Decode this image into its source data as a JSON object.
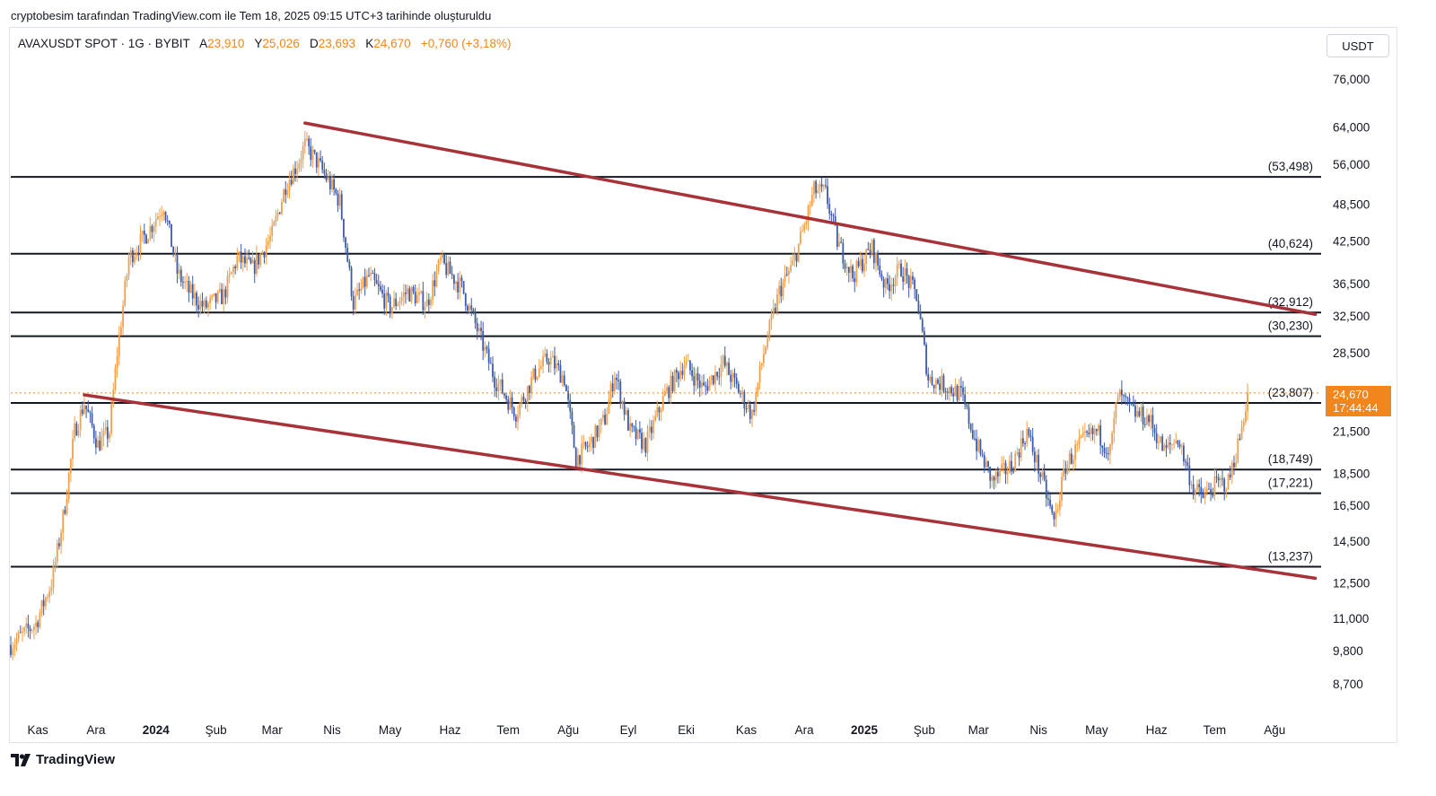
{
  "header": {
    "author_line": "cryptobesim tarafından TradingView.com ile Tem 18, 2025 09:15 UTC+3 tarihinde oluşturuldu"
  },
  "legend": {
    "symbol": "AVAXUSDT SPOT · 1G · BYBIT",
    "open_label": "A",
    "open_value": "23,910",
    "high_label": "Y",
    "high_value": "25,026",
    "low_label": "D",
    "low_value": "23,693",
    "close_label": "K",
    "close_value": "24,670",
    "change": "+0,760 (+3,18%)"
  },
  "currency": "USDT",
  "price_badge": {
    "price": "24,670",
    "countdown": "17:44:44"
  },
  "branding": {
    "logo_text": "TradingView"
  },
  "colors": {
    "up": "#f0a04b",
    "down": "#3d5ba9",
    "channel": "#a83239",
    "level": "#131722",
    "badge": "#f0861c",
    "current_line": "#f0861c"
  },
  "chart_data": {
    "type": "candlestick",
    "title": "AVAXUSDT SPOT · 1G · BYBIT",
    "scale": "log",
    "ylim": [
      7800,
      90000
    ],
    "y_ticks": [
      {
        "label": "76,000",
        "value": 76000
      },
      {
        "label": "64,000",
        "value": 64000
      },
      {
        "label": "56,000",
        "value": 56000
      },
      {
        "label": "48,500",
        "value": 48500
      },
      {
        "label": "42,500",
        "value": 42500
      },
      {
        "label": "36,500",
        "value": 36500
      },
      {
        "label": "32,500",
        "value": 32500
      },
      {
        "label": "28,500",
        "value": 28500
      },
      {
        "label": "21,500",
        "value": 21500
      },
      {
        "label": "18,500",
        "value": 18500
      },
      {
        "label": "16,500",
        "value": 16500
      },
      {
        "label": "14,500",
        "value": 14500
      },
      {
        "label": "12,500",
        "value": 12500
      },
      {
        "label": "11,000",
        "value": 11000
      },
      {
        "label": "9,800",
        "value": 9800
      },
      {
        "label": "8,700",
        "value": 8700
      }
    ],
    "x_ticks": [
      {
        "label": "Kas",
        "date": "2023-11-01",
        "bold": false
      },
      {
        "label": "Ara",
        "date": "2023-12-01",
        "bold": false
      },
      {
        "label": "2024",
        "date": "2024-01-01",
        "bold": true
      },
      {
        "label": "Şub",
        "date": "2024-02-01",
        "bold": false
      },
      {
        "label": "Mar",
        "date": "2024-03-01",
        "bold": false
      },
      {
        "label": "Nis",
        "date": "2024-04-01",
        "bold": false
      },
      {
        "label": "May",
        "date": "2024-05-01",
        "bold": false
      },
      {
        "label": "Haz",
        "date": "2024-06-01",
        "bold": false
      },
      {
        "label": "Tem",
        "date": "2024-07-01",
        "bold": false
      },
      {
        "label": "Ağu",
        "date": "2024-08-01",
        "bold": false
      },
      {
        "label": "Eyl",
        "date": "2024-09-01",
        "bold": false
      },
      {
        "label": "Eki",
        "date": "2024-10-01",
        "bold": false
      },
      {
        "label": "Kas",
        "date": "2024-11-01",
        "bold": false
      },
      {
        "label": "Ara",
        "date": "2024-12-01",
        "bold": false
      },
      {
        "label": "2025",
        "date": "2025-01-01",
        "bold": true
      },
      {
        "label": "Şub",
        "date": "2025-02-01",
        "bold": false
      },
      {
        "label": "Mar",
        "date": "2025-03-01",
        "bold": false
      },
      {
        "label": "Nis",
        "date": "2025-04-01",
        "bold": false
      },
      {
        "label": "May",
        "date": "2025-05-01",
        "bold": false
      },
      {
        "label": "Haz",
        "date": "2025-06-01",
        "bold": false
      },
      {
        "label": "Tem",
        "date": "2025-07-01",
        "bold": false
      },
      {
        "label": "Ağu",
        "date": "2025-08-01",
        "bold": false
      }
    ],
    "horizontal_levels": [
      {
        "label": "(53,498)",
        "value": 53498
      },
      {
        "label": "(40,624)",
        "value": 40624
      },
      {
        "label": "(32,912)",
        "value": 32912
      },
      {
        "label": "(30,230)",
        "value": 30230
      },
      {
        "label": "(23,807)",
        "value": 23807
      },
      {
        "label": "(18,749)",
        "value": 18749
      },
      {
        "label": "(17,221)",
        "value": 17221
      },
      {
        "label": "(13,237)",
        "value": 13237
      }
    ],
    "channel_lines": [
      {
        "name": "upper",
        "points": [
          {
            "date": "2024-03-18",
            "value": 64900
          },
          {
            "date": "2025-08-22",
            "value": 32700
          }
        ]
      },
      {
        "name": "lower",
        "points": [
          {
            "date": "2023-11-25",
            "value": 24500
          },
          {
            "date": "2025-08-22",
            "value": 12700
          }
        ]
      }
    ],
    "current_price": 24.67,
    "price_path": [
      {
        "date": "2023-10-18",
        "value": 10.0
      },
      {
        "date": "2023-10-31",
        "value": 10.8
      },
      {
        "date": "2023-11-08",
        "value": 12.5
      },
      {
        "date": "2023-11-12",
        "value": 14.5
      },
      {
        "date": "2023-11-15",
        "value": 16.5
      },
      {
        "date": "2023-11-20",
        "value": 21.5
      },
      {
        "date": "2023-11-25",
        "value": 23.8
      },
      {
        "date": "2023-12-02",
        "value": 20.5
      },
      {
        "date": "2023-12-08",
        "value": 21.5
      },
      {
        "date": "2023-12-12",
        "value": 28.5
      },
      {
        "date": "2023-12-18",
        "value": 40.0
      },
      {
        "date": "2023-12-28",
        "value": 44.0
      },
      {
        "date": "2024-01-05",
        "value": 48.5
      },
      {
        "date": "2024-01-12",
        "value": 38.0
      },
      {
        "date": "2024-01-18",
        "value": 35.5
      },
      {
        "date": "2024-01-26",
        "value": 33.5
      },
      {
        "date": "2024-02-05",
        "value": 35.0
      },
      {
        "date": "2024-02-12",
        "value": 40.0
      },
      {
        "date": "2024-02-20",
        "value": 38.5
      },
      {
        "date": "2024-03-01",
        "value": 43.5
      },
      {
        "date": "2024-03-08",
        "value": 52.0
      },
      {
        "date": "2024-03-14",
        "value": 56.0
      },
      {
        "date": "2024-03-18",
        "value": 60.0
      },
      {
        "date": "2024-03-25",
        "value": 56.0
      },
      {
        "date": "2024-04-05",
        "value": 49.0
      },
      {
        "date": "2024-04-12",
        "value": 34.0
      },
      {
        "date": "2024-04-20",
        "value": 37.5
      },
      {
        "date": "2024-05-01",
        "value": 33.5
      },
      {
        "date": "2024-05-10",
        "value": 35.5
      },
      {
        "date": "2024-05-20",
        "value": 34.0
      },
      {
        "date": "2024-05-27",
        "value": 39.5
      },
      {
        "date": "2024-06-07",
        "value": 36.0
      },
      {
        "date": "2024-06-15",
        "value": 31.0
      },
      {
        "date": "2024-06-24",
        "value": 26.0
      },
      {
        "date": "2024-07-05",
        "value": 23.0
      },
      {
        "date": "2024-07-15",
        "value": 26.5
      },
      {
        "date": "2024-07-22",
        "value": 28.0
      },
      {
        "date": "2024-07-30",
        "value": 26.0
      },
      {
        "date": "2024-08-05",
        "value": 19.5
      },
      {
        "date": "2024-08-12",
        "value": 20.5
      },
      {
        "date": "2024-08-20",
        "value": 22.5
      },
      {
        "date": "2024-08-25",
        "value": 26.5
      },
      {
        "date": "2024-09-02",
        "value": 21.5
      },
      {
        "date": "2024-09-10",
        "value": 20.5
      },
      {
        "date": "2024-09-20",
        "value": 24.5
      },
      {
        "date": "2024-09-30",
        "value": 27.5
      },
      {
        "date": "2024-10-10",
        "value": 25.0
      },
      {
        "date": "2024-10-20",
        "value": 27.5
      },
      {
        "date": "2024-11-04",
        "value": 22.8
      },
      {
        "date": "2024-11-10",
        "value": 28.5
      },
      {
        "date": "2024-11-18",
        "value": 35.5
      },
      {
        "date": "2024-11-25",
        "value": 39.0
      },
      {
        "date": "2024-12-02",
        "value": 46.0
      },
      {
        "date": "2024-12-06",
        "value": 51.0
      },
      {
        "date": "2024-12-12",
        "value": 50.5
      },
      {
        "date": "2024-12-18",
        "value": 42.5
      },
      {
        "date": "2024-12-26",
        "value": 37.5
      },
      {
        "date": "2025-01-05",
        "value": 41.5
      },
      {
        "date": "2025-01-12",
        "value": 36.0
      },
      {
        "date": "2025-01-20",
        "value": 38.5
      },
      {
        "date": "2025-01-28",
        "value": 35.0
      },
      {
        "date": "2025-02-03",
        "value": 26.0
      },
      {
        "date": "2025-02-10",
        "value": 25.5
      },
      {
        "date": "2025-02-20",
        "value": 24.5
      },
      {
        "date": "2025-02-28",
        "value": 20.5
      },
      {
        "date": "2025-03-08",
        "value": 18.0
      },
      {
        "date": "2025-03-18",
        "value": 19.0
      },
      {
        "date": "2025-03-26",
        "value": 21.5
      },
      {
        "date": "2025-04-03",
        "value": 18.0
      },
      {
        "date": "2025-04-09",
        "value": 15.5
      },
      {
        "date": "2025-04-15",
        "value": 19.0
      },
      {
        "date": "2025-04-22",
        "value": 20.5
      },
      {
        "date": "2025-05-01",
        "value": 21.5
      },
      {
        "date": "2025-05-08",
        "value": 20.0
      },
      {
        "date": "2025-05-12",
        "value": 24.5
      },
      {
        "date": "2025-05-20",
        "value": 23.0
      },
      {
        "date": "2025-05-28",
        "value": 22.5
      },
      {
        "date": "2025-06-05",
        "value": 20.0
      },
      {
        "date": "2025-06-12",
        "value": 21.0
      },
      {
        "date": "2025-06-20",
        "value": 17.5
      },
      {
        "date": "2025-06-25",
        "value": 17.0
      },
      {
        "date": "2025-07-02",
        "value": 17.8
      },
      {
        "date": "2025-07-08",
        "value": 17.9
      },
      {
        "date": "2025-07-14",
        "value": 21.0
      },
      {
        "date": "2025-07-18",
        "value": 24.67
      }
    ]
  }
}
